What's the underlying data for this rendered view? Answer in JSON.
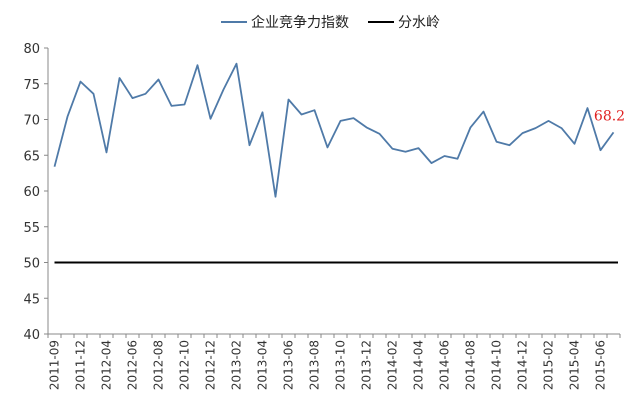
{
  "chart_data": {
    "type": "line",
    "title": "",
    "xlabel": "",
    "ylabel": "",
    "ylim": [
      40,
      80
    ],
    "yticks": [
      "40",
      "45",
      "50",
      "55",
      "60",
      "65",
      "70",
      "75",
      "80"
    ],
    "xtick_labels": [
      "2011-09",
      "2011-12",
      "2012-04",
      "2012-06",
      "2012-08",
      "2012-10",
      "2012-12",
      "2013-02",
      "2013-04",
      "2013-06",
      "2013-08",
      "2013-10",
      "2013-12",
      "2014-02",
      "2014-04",
      "2014-06",
      "2014-08",
      "2014-10",
      "2014-12",
      "2015-02",
      "2015-04",
      "2015-06"
    ],
    "grid": false,
    "legend_position": "top",
    "series": [
      {
        "name": "企业竞争力指数",
        "color": "#4f7aa8",
        "values": [
          63.4,
          70.4,
          75.3,
          73.6,
          65.4,
          75.8,
          73.0,
          73.6,
          75.6,
          71.9,
          72.1,
          77.6,
          70.1,
          74.2,
          77.8,
          66.4,
          71.0,
          59.2,
          72.8,
          70.7,
          71.3,
          66.1,
          69.8,
          70.2,
          68.9,
          68.0,
          65.9,
          65.5,
          66.0,
          63.9,
          64.9,
          64.5,
          68.9,
          71.1,
          66.9,
          66.4,
          68.1,
          68.8,
          69.8,
          68.8,
          66.6,
          71.6,
          65.7,
          68.2
        ]
      },
      {
        "name": "分水岭",
        "color": "#000000",
        "values": [
          50,
          50
        ]
      }
    ],
    "annotation": {
      "text": "68.2",
      "color": "#e02020"
    }
  }
}
